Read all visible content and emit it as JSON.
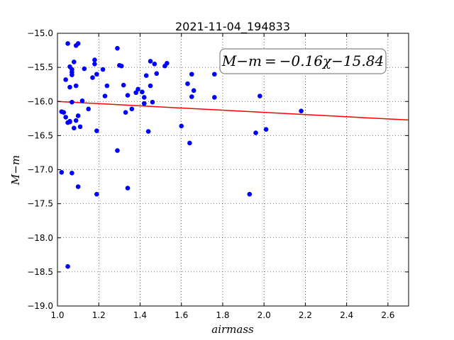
{
  "chart_data": {
    "type": "scatter",
    "title": "2021-11-04_194833",
    "xlabel": "airmass",
    "ylabel": "M−m",
    "xlim": [
      1.0,
      2.7
    ],
    "ylim": [
      -19.0,
      -15.0
    ],
    "y_inverted": false,
    "x_ticks": [
      1.0,
      1.2,
      1.4,
      1.6,
      1.8,
      2.0,
      2.2,
      2.4,
      2.6
    ],
    "x_tick_labels": [
      "1.0",
      "1.2",
      "1.4",
      "1.6",
      "1.8",
      "2.0",
      "2.2",
      "2.4",
      "2.6"
    ],
    "y_ticks": [
      -15.0,
      -15.5,
      -16.0,
      -16.5,
      -17.0,
      -17.5,
      -18.0,
      -18.5,
      -19.0
    ],
    "y_tick_labels": [
      "−15.0",
      "−15.5",
      "−16.0",
      "−16.5",
      "−17.0",
      "−17.5",
      "−18.0",
      "−18.5",
      "−19.0"
    ],
    "grid": true,
    "annotation": "M−m = −0.16χ−15.84",
    "colors": {
      "points": "#0000ff",
      "fit_line": "#ff0000"
    },
    "fit": {
      "slope": -0.16,
      "intercept": -15.84
    },
    "series": [
      {
        "kind": "points",
        "x": [
          1.05,
          1.09,
          1.1,
          1.06,
          1.07,
          1.08,
          1.07,
          1.04,
          1.06,
          1.07,
          1.06,
          1.08,
          1.09,
          1.07,
          1.02,
          1.03,
          1.04,
          1.05,
          1.06,
          1.09,
          1.1,
          1.11,
          1.12,
          1.13,
          1.15,
          1.17,
          1.18,
          1.18,
          1.19,
          1.22,
          1.23,
          1.24,
          1.29,
          1.3,
          1.31,
          1.32,
          1.33,
          1.34,
          1.36,
          1.38,
          1.39,
          1.41,
          1.42,
          1.42,
          1.43,
          1.45,
          1.45,
          1.46,
          1.47,
          1.48,
          1.52,
          1.53,
          1.02,
          1.07,
          1.1,
          1.19,
          1.19,
          1.29,
          1.34,
          1.44,
          1.6,
          1.63,
          1.64,
          1.65,
          1.65,
          1.66,
          1.76,
          1.76,
          1.93,
          1.96,
          1.98,
          2.01,
          2.18,
          1.05
        ],
        "y": [
          -15.15,
          -15.18,
          -15.15,
          -15.49,
          -15.53,
          -15.42,
          -15.57,
          -15.68,
          -15.79,
          -15.61,
          -16.3,
          -16.39,
          -15.77,
          -16.01,
          -16.15,
          -16.16,
          -16.23,
          -16.31,
          -16.29,
          -16.28,
          -16.21,
          -16.37,
          -15.99,
          -15.52,
          -16.11,
          -15.65,
          -15.39,
          -15.45,
          -15.6,
          -15.53,
          -15.92,
          -15.77,
          -15.22,
          -15.47,
          -15.48,
          -15.76,
          -16.16,
          -15.91,
          -16.11,
          -15.87,
          -15.82,
          -15.86,
          -15.94,
          -16.03,
          -15.62,
          -15.41,
          -15.77,
          -16.01,
          -15.45,
          -15.59,
          -15.48,
          -15.44,
          -17.04,
          -17.05,
          -17.25,
          -16.43,
          -17.36,
          -16.72,
          -17.27,
          -16.44,
          -16.36,
          -15.74,
          -16.61,
          -15.6,
          -15.93,
          -15.84,
          -15.94,
          -15.6,
          -17.36,
          -16.46,
          -15.92,
          -16.41,
          -16.14,
          -18.42
        ]
      }
    ]
  }
}
